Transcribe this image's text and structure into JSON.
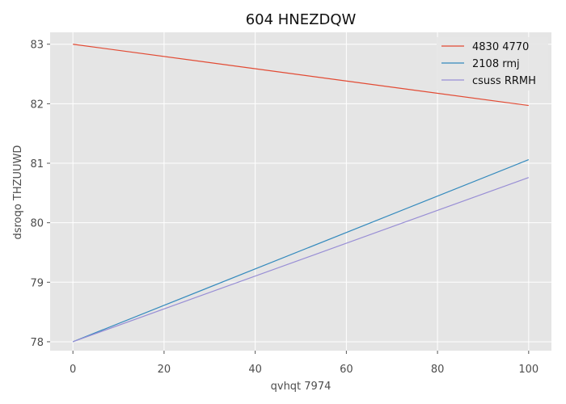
{
  "chart_data": {
    "type": "line",
    "title": "604 HNEZDQW",
    "xlabel": "qvhqt 7974",
    "ylabel": "dsroqo THZUUWD",
    "xlim": [
      -5,
      105
    ],
    "ylim": [
      77.85,
      83.2
    ],
    "xticks": [
      0,
      20,
      40,
      60,
      80,
      100
    ],
    "yticks": [
      78,
      79,
      80,
      81,
      82,
      83
    ],
    "grid": true,
    "legend_position": "top-right",
    "series": [
      {
        "name": "4830 4770",
        "color": "#e24a33",
        "x": [
          0,
          100
        ],
        "y": [
          83.0,
          81.97
        ]
      },
      {
        "name": "2108 rmj",
        "color": "#348abd",
        "x": [
          0,
          100
        ],
        "y": [
          78.0,
          81.06
        ]
      },
      {
        "name": "csuss RRMH",
        "color": "#988ed5",
        "x": [
          0,
          100
        ],
        "y": [
          78.0,
          80.76
        ]
      }
    ],
    "colors": {
      "plot_background": "#e5e5e5",
      "grid": "#ffffff"
    }
  }
}
